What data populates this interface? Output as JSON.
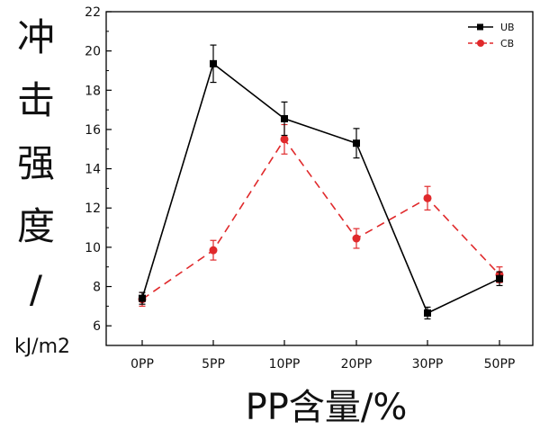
{
  "chart_data": {
    "type": "line",
    "categories": [
      "0PP",
      "5PP",
      "10PP",
      "20PP",
      "30PP",
      "50PP"
    ],
    "series": [
      {
        "name": "UB",
        "color": "#000000",
        "line_style": "solid",
        "marker": "square",
        "values": [
          7.4,
          19.35,
          16.55,
          15.3,
          6.65,
          8.4
        ],
        "errors": [
          0.3,
          0.95,
          0.85,
          0.75,
          0.3,
          0.35
        ]
      },
      {
        "name": "CB",
        "color": "#e0292b",
        "line_style": "dashed",
        "marker": "circle",
        "values": [
          7.35,
          9.85,
          15.5,
          10.45,
          12.5,
          8.6
        ],
        "errors": [
          0.35,
          0.5,
          0.75,
          0.5,
          0.6,
          0.4
        ]
      }
    ],
    "ylim": [
      5,
      22
    ],
    "yticks": [
      6,
      8,
      10,
      12,
      14,
      16,
      18,
      20,
      22
    ],
    "ylabel_chars": [
      "冲",
      "击",
      "强",
      "度",
      "/"
    ],
    "ylabel_unit": "kJ/m2",
    "xlabel": "PP含量/%",
    "legend_position": "top-right",
    "grid": false
  }
}
